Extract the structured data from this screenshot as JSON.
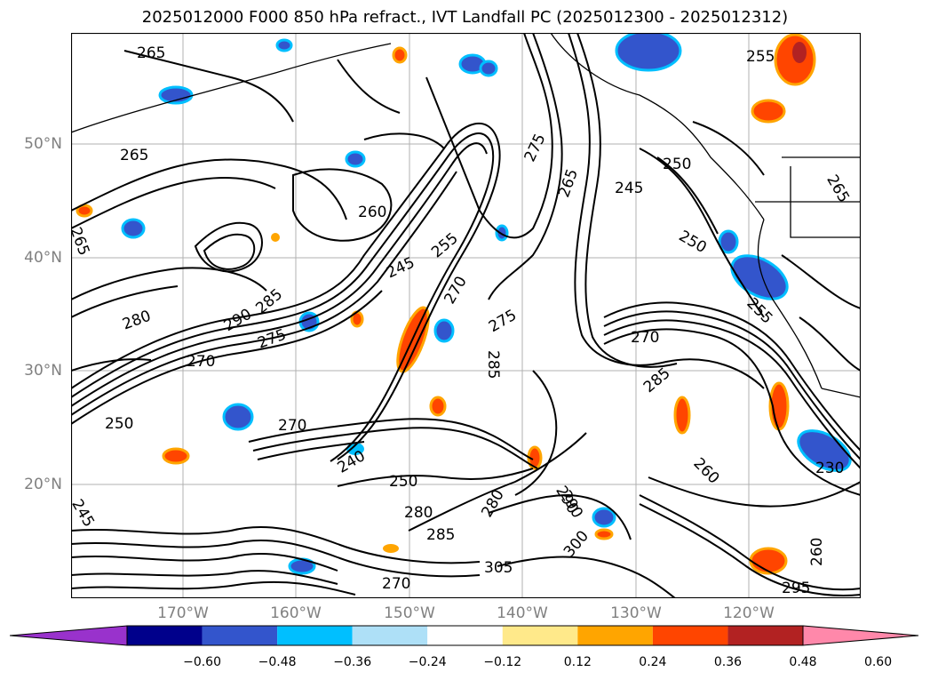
{
  "title": "2025012000 F000 850 hPa refract., IVT Landfall PC (2025012300 - 2025012312)",
  "lat_labels": [
    "50°N",
    "40°N",
    "30°N",
    "20°N"
  ],
  "lon_labels": [
    "170°W",
    "160°W",
    "150°W",
    "140°W",
    "130°W",
    "120°W"
  ],
  "contour_labels": [
    "265",
    "265",
    "265",
    "255",
    "250",
    "245",
    "260",
    "255",
    "250",
    "275",
    "265",
    "265",
    "245",
    "285",
    "280",
    "290",
    "275",
    "270",
    "275",
    "270",
    "285",
    "270",
    "250",
    "270",
    "240",
    "250",
    "280",
    "285",
    "280",
    "305",
    "290",
    "300",
    "230",
    "260",
    "255",
    "260",
    "245",
    "285",
    "290",
    "295",
    "270"
  ],
  "colorbar": {
    "ticks": [
      "−0.60",
      "−0.48",
      "−0.36",
      "−0.24",
      "−0.12",
      "0.12",
      "0.24",
      "0.36",
      "0.48",
      "0.60"
    ],
    "colors": [
      "#9932cc",
      "#00008b",
      "#3355cc",
      "#00bfff",
      "#aee0f7",
      "#ffffff",
      "#ffe98a",
      "#ffa500",
      "#ff4500",
      "#b22222",
      "#ff88aa"
    ]
  }
}
